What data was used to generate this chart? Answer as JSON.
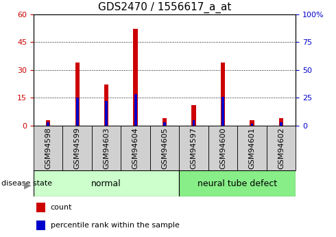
{
  "title": "GDS2470 / 1556617_a_at",
  "samples": [
    "GSM94598",
    "GSM94599",
    "GSM94603",
    "GSM94604",
    "GSM94605",
    "GSM94597",
    "GSM94600",
    "GSM94601",
    "GSM94602"
  ],
  "count_values": [
    3,
    34,
    22,
    52,
    4,
    11,
    34,
    3,
    4
  ],
  "percentile_values": [
    3,
    25,
    22,
    28,
    3,
    5,
    26,
    2,
    3
  ],
  "left_ylim": [
    0,
    60
  ],
  "right_ylim": [
    0,
    100
  ],
  "left_yticks": [
    0,
    15,
    30,
    45,
    60
  ],
  "right_yticks": [
    0,
    25,
    50,
    75,
    100
  ],
  "count_color": "#cc0000",
  "percentile_color": "#0000cc",
  "normal_color": "#ccffcc",
  "ntd_color": "#88ee88",
  "xtick_bg_color": "#d0d0d0",
  "plot_bg_color": "#ffffff",
  "disease_state_label": "disease state",
  "legend_items": [
    {
      "label": "count",
      "color": "#cc0000"
    },
    {
      "label": "percentile rank within the sample",
      "color": "#0000cc"
    }
  ],
  "title_fontsize": 11,
  "tick_fontsize": 8,
  "bar_width": 0.15
}
